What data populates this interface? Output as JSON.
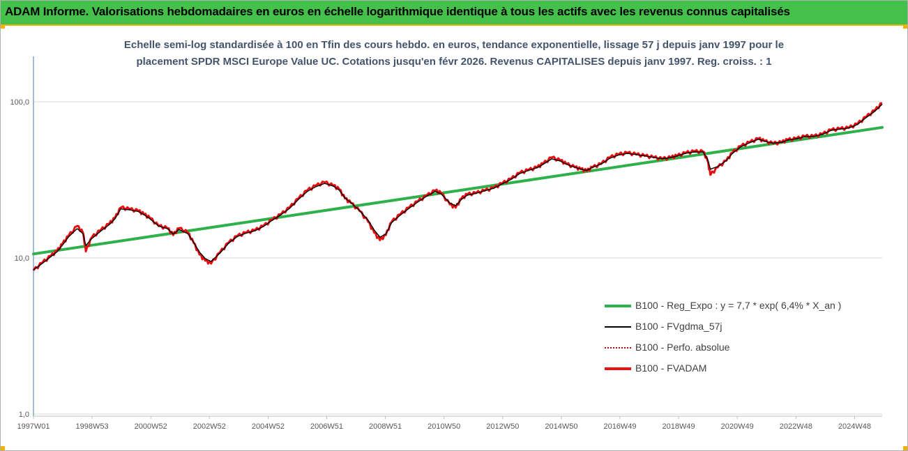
{
  "banner": {
    "title": "ADAM Informe. Valorisations hebdomadaires en euros en échelle logarithmique identique à tous les actifs avec les revenus connus capitalisés"
  },
  "colors": {
    "banner_bg": "#44c14a",
    "accent": "#f2b300",
    "title_text": "#44546a",
    "regression": "#2eb04a",
    "fvgdma": "#000000",
    "perfo": "#c00000",
    "fvadam": "#ee1111"
  },
  "chart_data": {
    "type": "line",
    "title": "Echelle semi-log standardisée à 100 en Tfin des cours hebdo. en euros, tendance exponentielle, lissage 57 j depuis janv 1997 pour le placement SPDR MSCI Europe Value UC. Cotations jusqu'en févr 2026. Revenus CAPITALISES depuis janv 1997. Reg. croiss. : 1",
    "y_scale": "log",
    "ylim": [
      1,
      200
    ],
    "x_range": [
      1997.0,
      2026.15
    ],
    "y_tick_labels": [
      "1,0",
      "10,0",
      "100,0"
    ],
    "y_ticks": [
      1,
      10,
      100
    ],
    "x_tick_labels": [
      "1997W01",
      "1998W53",
      "2000W52",
      "2002W52",
      "2004W52",
      "2006W51",
      "2008W51",
      "2010W50",
      "2012W50",
      "2014W50",
      "2016W49",
      "2018W49",
      "2020W49",
      "2022W48",
      "2024W48"
    ],
    "grid": "horizontal",
    "legend_position": "bottom-right",
    "legend": [
      {
        "label": "B100 - Reg_Expo : y = 7,7 * exp( 6,4% *  X_an )",
        "color": "#2eb04a",
        "style": "solid-thick"
      },
      {
        "label": "B100 - FVgdma_57j",
        "color": "#000000",
        "style": "solid"
      },
      {
        "label": "B100 - Perfo. absolue",
        "color": "#c00000",
        "style": "dotted"
      },
      {
        "label": "B100 - FVADAM",
        "color": "#ee1111",
        "style": "solid-thick"
      }
    ],
    "series": [
      {
        "name": "B100 - Reg_Expo : y = 7,7 * exp( 6,4% *  X_an )",
        "x": [
          1997.0,
          2026.15
        ],
        "values": [
          10.6,
          68.5
        ]
      },
      {
        "name": "B100 - FVADAM",
        "x": [
          1997.0,
          1997.3,
          1997.6,
          1997.8,
          1998.0,
          1998.2,
          1998.5,
          1998.7,
          1998.8,
          1999.0,
          1999.3,
          1999.6,
          1999.8,
          2000.0,
          2000.3,
          2000.6,
          2000.8,
          2001.0,
          2001.3,
          2001.6,
          2001.8,
          2002.0,
          2002.3,
          2002.5,
          2002.7,
          2002.9,
          2003.1,
          2003.4,
          2003.7,
          2004.0,
          2004.3,
          2004.6,
          2004.9,
          2005.2,
          2005.5,
          2005.8,
          2006.1,
          2006.4,
          2006.7,
          2007.0,
          2007.3,
          2007.5,
          2007.7,
          2007.9,
          2008.2,
          2008.5,
          2008.7,
          2008.9,
          2009.1,
          2009.3,
          2009.6,
          2009.9,
          2010.2,
          2010.5,
          2010.8,
          2011.0,
          2011.3,
          2011.5,
          2011.7,
          2011.9,
          2012.2,
          2012.5,
          2012.8,
          2013.1,
          2013.4,
          2013.7,
          2014.0,
          2014.3,
          2014.5,
          2014.8,
          2015.1,
          2015.3,
          2015.6,
          2015.8,
          2016.0,
          2016.2,
          2016.5,
          2016.8,
          2017.1,
          2017.4,
          2017.7,
          2018.0,
          2018.3,
          2018.6,
          2018.9,
          2019.1,
          2019.4,
          2019.7,
          2020.0,
          2020.15,
          2020.25,
          2020.5,
          2020.8,
          2021.0,
          2021.3,
          2021.6,
          2021.9,
          2022.1,
          2022.4,
          2022.7,
          2022.9,
          2023.2,
          2023.5,
          2023.8,
          2024.1,
          2024.4,
          2024.7,
          2025.0,
          2025.3,
          2025.6,
          2025.9,
          2026.15
        ],
        "values": [
          8.3,
          9.3,
          10.3,
          11.0,
          12.3,
          13.8,
          16.0,
          14.5,
          11.0,
          13.5,
          15.0,
          16.5,
          18.0,
          21.0,
          20.5,
          20.0,
          19.0,
          18.0,
          16.0,
          15.5,
          14.0,
          15.5,
          14.5,
          12.5,
          10.5,
          9.6,
          9.2,
          10.8,
          12.5,
          13.8,
          14.5,
          15.0,
          16.0,
          17.5,
          19.0,
          21.0,
          24.0,
          27.0,
          29.0,
          30.5,
          29.0,
          27.5,
          24.0,
          22.5,
          20.0,
          17.0,
          14.5,
          13.0,
          14.0,
          17.0,
          19.0,
          21.0,
          23.0,
          25.0,
          27.0,
          26.0,
          22.0,
          21.0,
          24.0,
          25.5,
          26.0,
          27.0,
          28.0,
          30.0,
          32.0,
          35.0,
          36.5,
          38.0,
          40.0,
          44.0,
          42.0,
          40.0,
          38.0,
          37.0,
          36.0,
          38.0,
          40.0,
          44.0,
          46.0,
          47.0,
          46.0,
          45.0,
          44.0,
          43.0,
          44.0,
          45.0,
          47.0,
          48.0,
          48.0,
          42.0,
          34.0,
          38.0,
          42.0,
          47.0,
          52.0,
          55.0,
          58.0,
          56.0,
          54.0,
          55.0,
          57.0,
          58.0,
          60.0,
          60.0,
          62.0,
          66.0,
          67.0,
          68.0,
          72.0,
          80.0,
          88.0,
          98.0
        ]
      },
      {
        "name": "B100 - FVgdma_57j",
        "x": [
          1997.0,
          1997.3,
          1997.6,
          1997.8,
          1998.0,
          1998.2,
          1998.5,
          1998.7,
          1998.8,
          1999.0,
          1999.3,
          1999.6,
          1999.8,
          2000.0,
          2000.3,
          2000.6,
          2000.8,
          2001.0,
          2001.3,
          2001.6,
          2001.8,
          2002.0,
          2002.3,
          2002.5,
          2002.7,
          2002.9,
          2003.1,
          2003.4,
          2003.7,
          2004.0,
          2004.3,
          2004.6,
          2004.9,
          2005.2,
          2005.5,
          2005.8,
          2006.1,
          2006.4,
          2006.7,
          2007.0,
          2007.3,
          2007.5,
          2007.7,
          2007.9,
          2008.2,
          2008.5,
          2008.7,
          2008.9,
          2009.1,
          2009.3,
          2009.6,
          2009.9,
          2010.2,
          2010.5,
          2010.8,
          2011.0,
          2011.3,
          2011.5,
          2011.7,
          2011.9,
          2012.2,
          2012.5,
          2012.8,
          2013.1,
          2013.4,
          2013.7,
          2014.0,
          2014.3,
          2014.5,
          2014.8,
          2015.1,
          2015.3,
          2015.6,
          2015.8,
          2016.0,
          2016.2,
          2016.5,
          2016.8,
          2017.1,
          2017.4,
          2017.7,
          2018.0,
          2018.3,
          2018.6,
          2018.9,
          2019.1,
          2019.4,
          2019.7,
          2020.0,
          2020.15,
          2020.25,
          2020.5,
          2020.8,
          2021.0,
          2021.3,
          2021.6,
          2021.9,
          2022.1,
          2022.4,
          2022.7,
          2022.9,
          2023.2,
          2023.5,
          2023.8,
          2024.1,
          2024.4,
          2024.7,
          2025.0,
          2025.3,
          2025.6,
          2025.9,
          2026.15
        ],
        "values": [
          8.4,
          9.2,
          10.2,
          10.9,
          12.1,
          13.6,
          15.4,
          14.3,
          12.0,
          13.3,
          14.8,
          16.3,
          17.8,
          20.6,
          20.3,
          19.8,
          18.9,
          17.8,
          16.0,
          15.4,
          14.2,
          15.2,
          14.3,
          12.6,
          10.9,
          9.9,
          9.5,
          10.7,
          12.4,
          13.7,
          14.4,
          14.9,
          15.9,
          17.4,
          18.9,
          20.8,
          23.7,
          26.6,
          28.6,
          30.0,
          28.8,
          27.2,
          24.2,
          22.6,
          20.1,
          17.4,
          15.1,
          13.6,
          14.2,
          16.8,
          18.8,
          20.8,
          22.8,
          24.8,
          26.7,
          25.7,
          22.5,
          21.6,
          23.7,
          25.2,
          25.9,
          26.9,
          27.9,
          29.8,
          31.8,
          34.7,
          36.3,
          37.8,
          39.7,
          43.1,
          41.7,
          39.8,
          38.0,
          37.0,
          36.3,
          38.0,
          39.9,
          43.5,
          45.6,
          46.7,
          45.9,
          45.0,
          44.0,
          43.2,
          44.0,
          44.9,
          46.8,
          47.7,
          47.6,
          43.0,
          37.0,
          38.5,
          42.0,
          46.6,
          51.6,
          54.7,
          57.6,
          56.0,
          54.3,
          55.0,
          56.8,
          57.9,
          59.8,
          60.0,
          61.9,
          65.6,
          66.8,
          67.9,
          71.5,
          79.2,
          87.0,
          96.5
        ]
      }
    ]
  }
}
